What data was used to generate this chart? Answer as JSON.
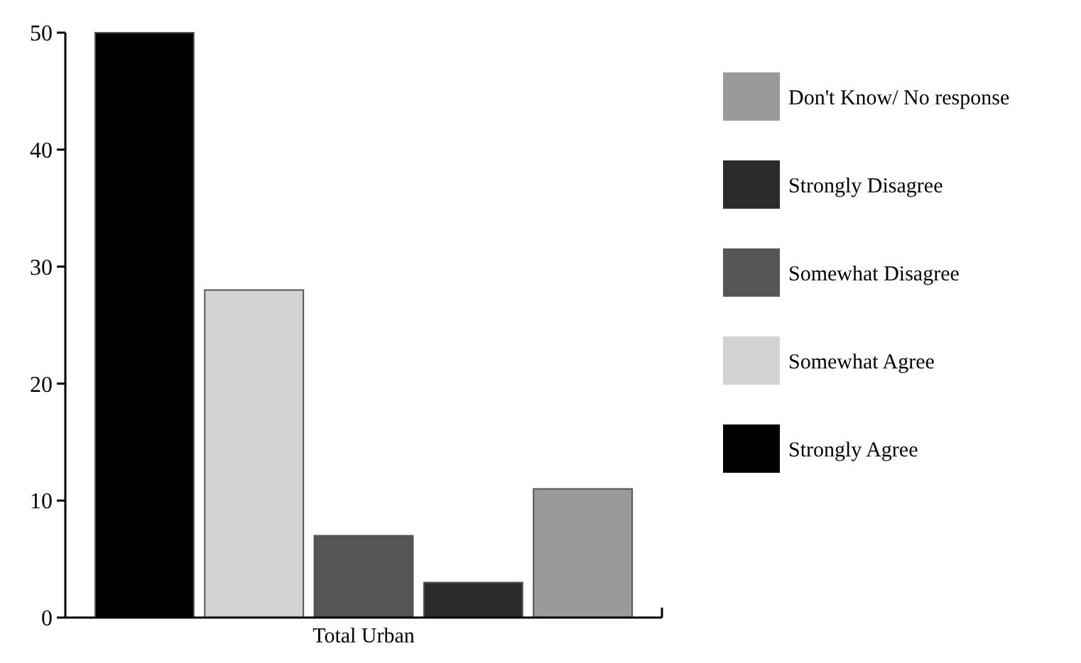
{
  "chart_data": {
    "type": "bar",
    "categories": [
      "Total Urban"
    ],
    "ylim": [
      0,
      50
    ],
    "yticks": [
      0,
      10,
      20,
      30,
      40,
      50
    ],
    "legend": "right",
    "grid": false,
    "series": [
      {
        "name": "Strongly Agree",
        "color": "#000000",
        "values": [
          50
        ]
      },
      {
        "name": "Somewhat Agree",
        "color": "#d2d2d2",
        "values": [
          28
        ]
      },
      {
        "name": "Somewhat Disagree",
        "color": "#555555",
        "values": [
          7
        ]
      },
      {
        "name": "Strongly Disagree",
        "color": "#2b2b2b",
        "values": [
          3
        ]
      },
      {
        "name": "Don't Know/ No response",
        "color": "#9a9a9a",
        "values": [
          11
        ]
      }
    ]
  }
}
